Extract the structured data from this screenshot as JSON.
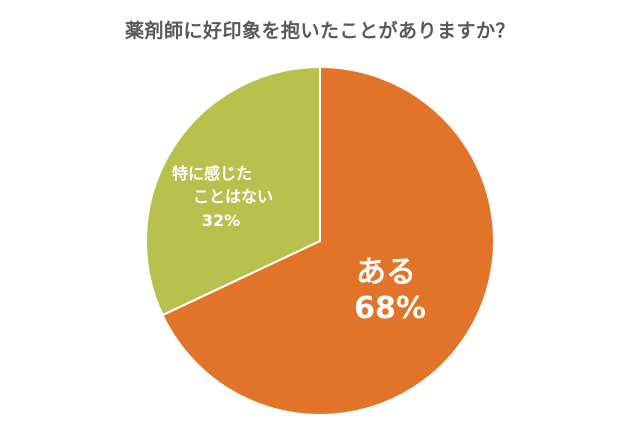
{
  "chart_data": {
    "type": "pie",
    "title": "薬剤師に好印象を抱いたことがありますか？",
    "slices": [
      {
        "label": "ある",
        "value": 68,
        "value_label": "68%",
        "color": "#E2742A"
      },
      {
        "label": "特に感じたことはない",
        "label_lines": [
          "特に感じた",
          "ことはない"
        ],
        "value": 32,
        "value_label": "32%",
        "color": "#B8C04E"
      }
    ],
    "start": "12 o'clock",
    "direction": "clockwise",
    "legend": "none"
  }
}
